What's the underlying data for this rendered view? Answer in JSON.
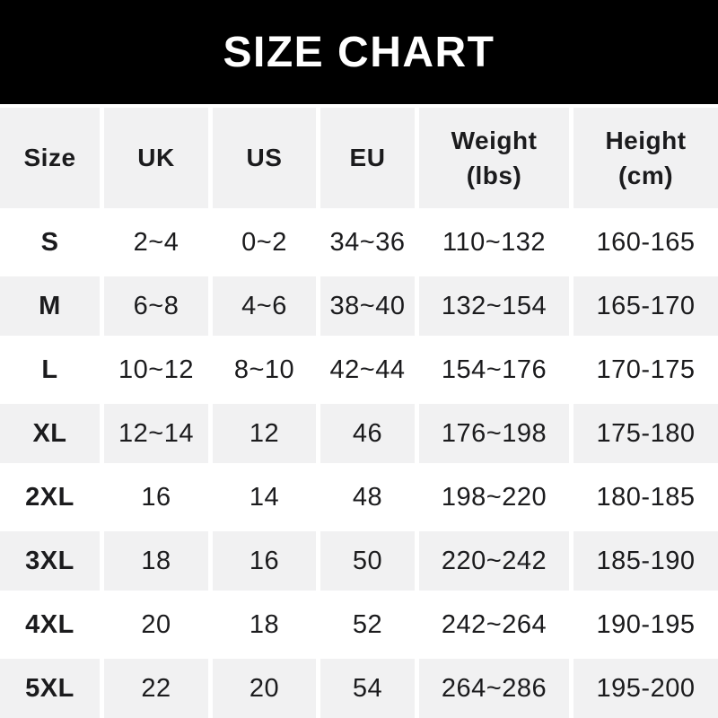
{
  "banner": {
    "title": "SIZE CHART"
  },
  "colors": {
    "banner_bg": "#000000",
    "banner_text": "#ffffff",
    "row_alt_bg": "#f1f1f2",
    "header_bg": "#f1f1f2",
    "text": "#1b1b1d",
    "page_bg": "#ffffff"
  },
  "table": {
    "columns": [
      {
        "label": "Size"
      },
      {
        "label": "UK"
      },
      {
        "label": "US"
      },
      {
        "label": "EU"
      },
      {
        "label": "Weight",
        "sublabel": "(lbs)"
      },
      {
        "label": "Height",
        "sublabel": "(cm)"
      }
    ],
    "rows": [
      {
        "label": "S",
        "values": [
          "2~4",
          "0~2",
          "34~36",
          "110~132",
          "160-165"
        ]
      },
      {
        "label": "M",
        "values": [
          "6~8",
          "4~6",
          "38~40",
          "132~154",
          "165-170"
        ]
      },
      {
        "label": "L",
        "values": [
          "10~12",
          "8~10",
          "42~44",
          "154~176",
          "170-175"
        ]
      },
      {
        "label": "XL",
        "values": [
          "12~14",
          "12",
          "46",
          "176~198",
          "175-180"
        ]
      },
      {
        "label": "2XL",
        "values": [
          "16",
          "14",
          "48",
          "198~220",
          "180-185"
        ]
      },
      {
        "label": "3XL",
        "values": [
          "18",
          "16",
          "50",
          "220~242",
          "185-190"
        ]
      },
      {
        "label": "4XL",
        "values": [
          "20",
          "18",
          "52",
          "242~264",
          "190-195"
        ]
      },
      {
        "label": "5XL",
        "values": [
          "22",
          "20",
          "54",
          "264~286",
          "195-200"
        ]
      }
    ]
  }
}
